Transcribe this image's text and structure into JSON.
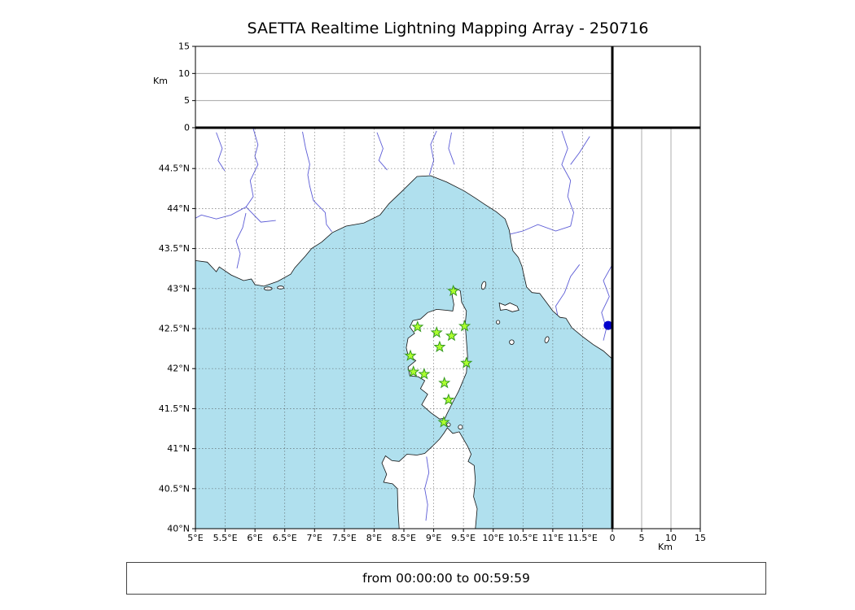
{
  "chart_data": {
    "type": "scatter",
    "subtype": "geographic-map-with-altitude-cross-section-panels",
    "title": "SAETTA Realtime Lightning Mapping Array - 250716",
    "time_window": "from 00:00:00 to 00:59:59",
    "map_panel": {
      "lon_range": [
        5,
        12
      ],
      "lat_range": [
        40,
        45
      ],
      "grid": "dashed",
      "sea_color": "#b0e0ee",
      "land_color": "#ffffff",
      "river_color": "#4040cf",
      "lon_ticks": [
        {
          "value": 5,
          "label": "5°E"
        },
        {
          "value": 5.5,
          "label": "5.5°E"
        },
        {
          "value": 6,
          "label": "6°E"
        },
        {
          "value": 6.5,
          "label": "6.5°E"
        },
        {
          "value": 7,
          "label": "7°E"
        },
        {
          "value": 7.5,
          "label": "7.5°E"
        },
        {
          "value": 8,
          "label": "8°E"
        },
        {
          "value": 8.5,
          "label": "8.5°E"
        },
        {
          "value": 9,
          "label": "9°E"
        },
        {
          "value": 9.5,
          "label": "9.5°E"
        },
        {
          "value": 10,
          "label": "10°E"
        },
        {
          "value": 10.5,
          "label": "10.5°E"
        },
        {
          "value": 11,
          "label": "11°E"
        },
        {
          "value": 11.5,
          "label": "11.5°E"
        }
      ],
      "lat_ticks": [
        {
          "value": 40,
          "label": "40°N"
        },
        {
          "value": 40.5,
          "label": "40.5°N"
        },
        {
          "value": 41,
          "label": "41°N"
        },
        {
          "value": 41.5,
          "label": "41.5°N"
        },
        {
          "value": 42,
          "label": "42°N"
        },
        {
          "value": 42.5,
          "label": "42.5°N"
        },
        {
          "value": 43,
          "label": "43°N"
        },
        {
          "value": 43.5,
          "label": "43.5°N"
        },
        {
          "value": 44,
          "label": "44°N"
        },
        {
          "value": 44.5,
          "label": "44.5°N"
        }
      ]
    },
    "altitude_panels": {
      "axis_label": "Km",
      "range_km": [
        0,
        15
      ],
      "ticks": [
        {
          "value": 0,
          "label": "0"
        },
        {
          "value": 5,
          "label": "5"
        },
        {
          "value": 10,
          "label": "10"
        },
        {
          "value": 15,
          "label": "15"
        }
      ],
      "gridlines_km": [
        5,
        10
      ],
      "top_panel_series": [],
      "right_panel_series": []
    },
    "stations": {
      "marker": "star",
      "fill": "#adff2f",
      "stroke": "#35991f",
      "points": [
        {
          "lon": 9.33,
          "lat": 42.97
        },
        {
          "lon": 8.73,
          "lat": 42.52
        },
        {
          "lon": 9.05,
          "lat": 42.45
        },
        {
          "lon": 9.52,
          "lat": 42.53
        },
        {
          "lon": 9.3,
          "lat": 42.41
        },
        {
          "lon": 9.1,
          "lat": 42.27
        },
        {
          "lon": 8.61,
          "lat": 42.16
        },
        {
          "lon": 9.55,
          "lat": 42.07
        },
        {
          "lon": 8.66,
          "lat": 41.96
        },
        {
          "lon": 8.84,
          "lat": 41.93
        },
        {
          "lon": 9.18,
          "lat": 41.82
        },
        {
          "lon": 9.25,
          "lat": 41.61
        },
        {
          "lon": 9.17,
          "lat": 41.33
        }
      ]
    },
    "lake_marker": {
      "lon": 11.93,
      "lat": 42.54,
      "color": "#0000cd"
    }
  }
}
